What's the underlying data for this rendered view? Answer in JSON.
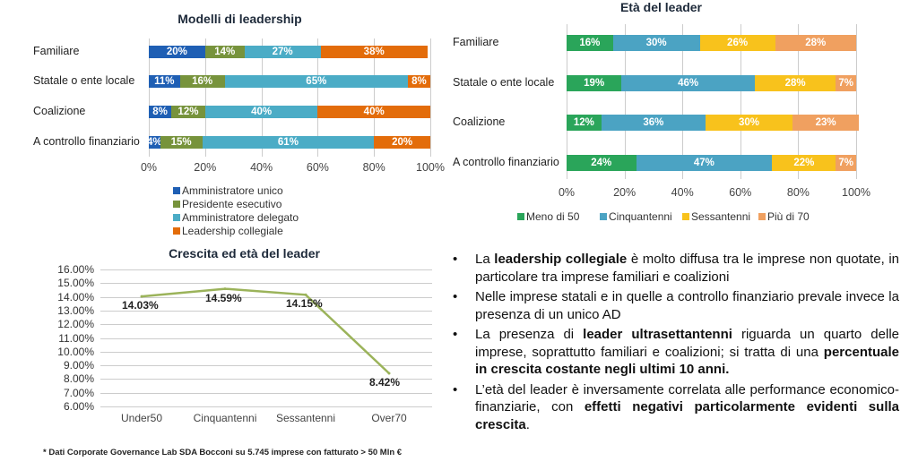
{
  "chart_data": [
    {
      "type": "bar",
      "orientation": "horizontal",
      "stacked": true,
      "title": "Modelli di leadership",
      "categories": [
        "Familiare",
        "Statale o ente locale",
        "Coalizione",
        "A controllo finanziario"
      ],
      "xlim": [
        0,
        100
      ],
      "xticks": [
        "0%",
        "20%",
        "40%",
        "60%",
        "80%",
        "100%"
      ],
      "grid": true,
      "legend": "bottom",
      "series": [
        {
          "name": "Amministratore unico",
          "color": "#1f5fb4",
          "values": [
            20,
            11,
            8,
            4
          ]
        },
        {
          "name": "Presidente esecutivo",
          "color": "#77933c",
          "values": [
            14,
            16,
            12,
            15
          ]
        },
        {
          "name": "Amministratore delegato",
          "color": "#4bacc6",
          "values": [
            27,
            65,
            40,
            61
          ]
        },
        {
          "name": "Leadership collegiale",
          "color": "#e36c0a",
          "values": [
            38,
            8,
            40,
            20
          ]
        }
      ]
    },
    {
      "type": "bar",
      "orientation": "horizontal",
      "stacked": true,
      "title": "Età del leader",
      "categories": [
        "Familiare",
        "Statale o ente locale",
        "Coalizione",
        "A controllo finanziario"
      ],
      "xlim": [
        0,
        100
      ],
      "xticks": [
        "0%",
        "20%",
        "40%",
        "60%",
        "80%",
        "100%"
      ],
      "grid": true,
      "legend": "bottom",
      "series": [
        {
          "name": "Meno di 50",
          "color": "#2aa55a",
          "values": [
            16,
            19,
            12,
            24
          ]
        },
        {
          "name": "Cinquantenni",
          "color": "#4ba3c3",
          "values": [
            30,
            46,
            36,
            47
          ]
        },
        {
          "name": "Sessantenni",
          "color": "#f8c21c",
          "values": [
            26,
            28,
            30,
            22
          ]
        },
        {
          "name": "Più di 70",
          "color": "#f0a060",
          "values": [
            28,
            7,
            23,
            7
          ]
        }
      ]
    },
    {
      "type": "line",
      "title": "Crescita ed età del leader",
      "categories": [
        "Under50",
        "Cinquantenni",
        "Sessantenni",
        "Over70"
      ],
      "values": [
        14.03,
        14.59,
        14.15,
        8.42
      ],
      "labels": [
        "14.03%",
        "14.59%",
        "14.15%",
        "8.42%"
      ],
      "ylim": [
        6,
        16
      ],
      "yticks": [
        "16.00%",
        "15.00%",
        "14.00%",
        "13.00%",
        "12.00%",
        "11.00%",
        "10.00%",
        "9.00%",
        "8.00%",
        "7.00%",
        "6.00%"
      ],
      "grid": true,
      "color": "#9bb35a"
    }
  ],
  "bullets": [
    [
      {
        "t": "La "
      },
      {
        "t": "leadership collegiale",
        "b": true
      },
      {
        "t": " è molto diffusa tra le imprese non quotate, in particolare tra imprese familiari e coalizioni"
      }
    ],
    [
      {
        "t": "Nelle imprese statali e in quelle a controllo finanziario prevale invece la presenza di un unico AD"
      }
    ],
    [
      {
        "t": "La presenza di "
      },
      {
        "t": "leader ultrasettantenni",
        "b": true
      },
      {
        "t": " riguarda un quarto delle imprese, soprattutto familiari e coalizioni; si tratta di una "
      },
      {
        "t": "percentuale in crescita costante negli ultimi 10 anni.",
        "b": true
      }
    ],
    [
      {
        "t": "L’età del leader è inversamente correlata alle performance economico-finanziarie, con "
      },
      {
        "t": "effetti negativi particolarmente evidenti sulla crescita",
        "b": true
      },
      {
        "t": "."
      }
    ]
  ],
  "bullet_char": "•",
  "footnote": "* Dati Corporate Governance Lab SDA Bocconi su 5.745 imprese con fatturato > 50 Mln €"
}
